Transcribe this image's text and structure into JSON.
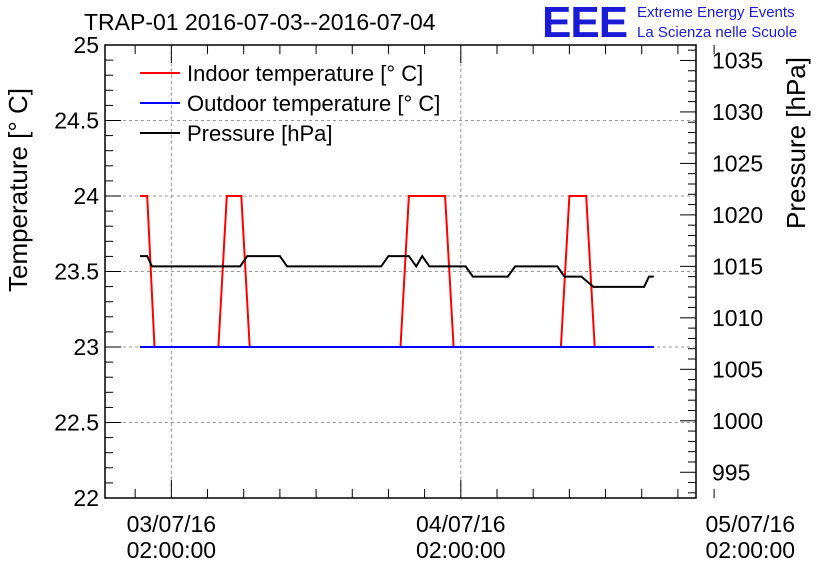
{
  "logo": {
    "mark": "EEE",
    "line1": "Extreme Energy Events",
    "line2": "La Scienza nelle Scuole",
    "color": "#1b1bd6"
  },
  "chart_data": {
    "type": "line",
    "title": "TRAP-01 2016-07-03--2016-07-04",
    "ylabel": "Temperature [° C]",
    "y2label": "Pressure [hPa]",
    "xlabel": "",
    "xlim": [
      -5.5,
      43.5
    ],
    "ylim": [
      22,
      25
    ],
    "y2lim": [
      992.5,
      1036.5
    ],
    "grid": true,
    "legend_position": "top-left",
    "x_ticks": [
      {
        "value": 0,
        "date": "03/07/16",
        "time": "02:00:00"
      },
      {
        "value": 24,
        "date": "04/07/16",
        "time": "02:00:00"
      },
      {
        "value": 48,
        "date": "05/07/16",
        "time": "02:00:00"
      }
    ],
    "y_ticks": [
      "22",
      "22.5",
      "23",
      "23.5",
      "24",
      "24.5",
      "25"
    ],
    "y2_ticks": [
      "995",
      "1000",
      "1005",
      "1010",
      "1015",
      "1020",
      "1025",
      "1030",
      "1035"
    ],
    "series": [
      {
        "name": "Indoor temperature [° C]",
        "axis": "left",
        "color": "#ff0000",
        "x": [
          -2.6,
          -2.0,
          -1.4,
          3.9,
          4.6,
          5.8,
          6.5,
          19.0,
          19.7,
          22.7,
          23.4,
          32.3,
          33.0,
          34.4,
          35.1
        ],
        "y": [
          24,
          24,
          23,
          23,
          24,
          24,
          23,
          23,
          24,
          24,
          23,
          23,
          24,
          24,
          23
        ]
      },
      {
        "name": "Outdoor temperature [° C]",
        "axis": "left",
        "color": "#0000ff",
        "x": [
          -2.6,
          40.0
        ],
        "y": [
          23,
          23
        ]
      },
      {
        "name": "Pressure [hPa]",
        "axis": "right",
        "color": "#000000",
        "x": [
          -2.6,
          -2.0,
          -1.6,
          5.7,
          6.3,
          9.0,
          9.6,
          17.4,
          18.0,
          19.7,
          20.3,
          20.8,
          21.4,
          24.4,
          25.0,
          27.9,
          28.5,
          32.0,
          32.6,
          34.0,
          35.0,
          36.0,
          39.2,
          39.6,
          40.0
        ],
        "y": [
          1016,
          1016,
          1015,
          1015,
          1016,
          1016,
          1015,
          1015,
          1016,
          1016,
          1015,
          1016,
          1015,
          1015,
          1014,
          1014,
          1015,
          1015,
          1014,
          1014,
          1013,
          1013,
          1013,
          1014,
          1014
        ]
      }
    ]
  }
}
